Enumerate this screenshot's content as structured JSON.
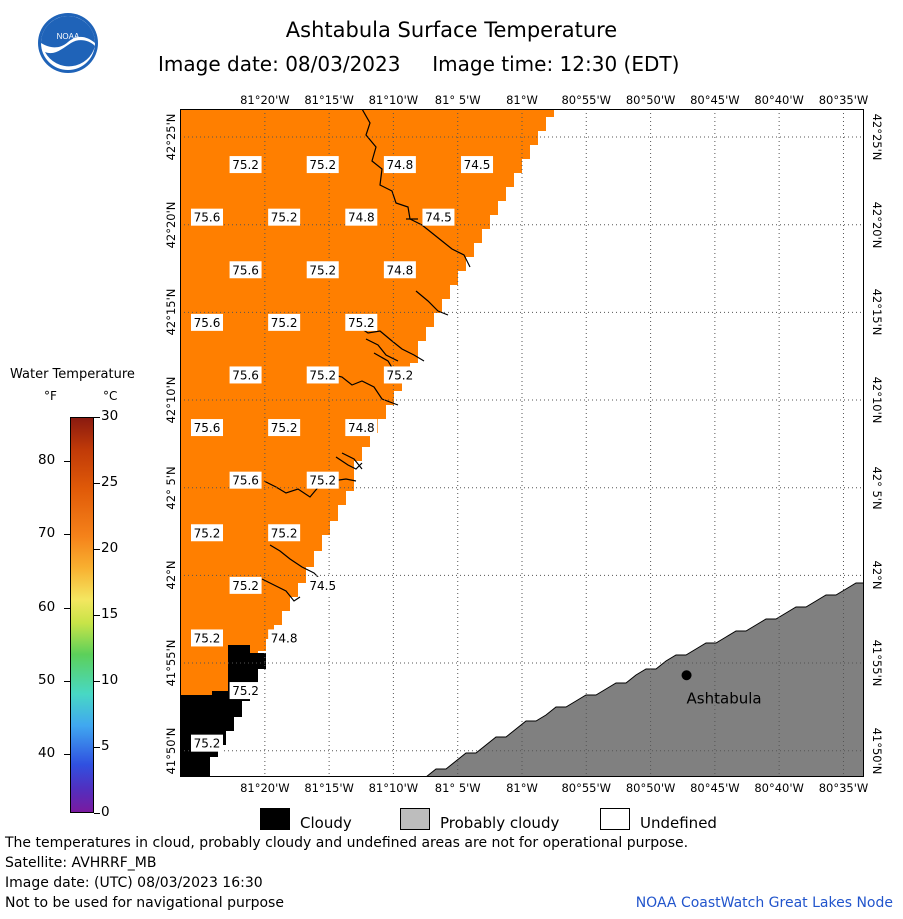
{
  "title": "Ashtabula Surface Temperature",
  "subtitle": {
    "date": "Image date: 08/03/2023",
    "time": "Image time: 12:30 (EDT)"
  },
  "logo": {
    "text": "NOAA"
  },
  "lon_labels": [
    "81°20'W",
    "81°15'W",
    "81°10'W",
    "81° 5'W",
    "81°W",
    "80°55'W",
    "80°50'W",
    "80°45'W",
    "80°40'W",
    "80°35'W"
  ],
  "lat_labels": [
    "42°25'N",
    "42°20'N",
    "42°15'N",
    "42°10'N",
    "42° 5'N",
    "42°N",
    "41°55'N",
    "41°50'N"
  ],
  "temperatures": [
    {
      "v": "75.2",
      "lon": -81.3583,
      "lat": 42.39
    },
    {
      "v": "75.2",
      "lon": -81.2583,
      "lat": 42.39
    },
    {
      "v": "74.8",
      "lon": -81.1583,
      "lat": 42.39
    },
    {
      "v": "74.5",
      "lon": -81.0583,
      "lat": 42.39
    },
    {
      "v": "75.6",
      "lon": -81.4083,
      "lat": 42.34
    },
    {
      "v": "75.2",
      "lon": -81.3083,
      "lat": 42.34
    },
    {
      "v": "74.8",
      "lon": -81.2083,
      "lat": 42.34
    },
    {
      "v": "74.5",
      "lon": -81.1083,
      "lat": 42.34
    },
    {
      "v": "75.6",
      "lon": -81.3583,
      "lat": 42.29
    },
    {
      "v": "75.2",
      "lon": -81.2583,
      "lat": 42.29
    },
    {
      "v": "74.8",
      "lon": -81.1583,
      "lat": 42.29
    },
    {
      "v": "75.6",
      "lon": -81.4083,
      "lat": 42.24
    },
    {
      "v": "75.2",
      "lon": -81.3083,
      "lat": 42.24
    },
    {
      "v": "75.2",
      "lon": -81.2083,
      "lat": 42.24
    },
    {
      "v": "75.6",
      "lon": -81.3583,
      "lat": 42.19
    },
    {
      "v": "75.2",
      "lon": -81.2583,
      "lat": 42.19
    },
    {
      "v": "75.2",
      "lon": -81.1583,
      "lat": 42.19
    },
    {
      "v": "75.6",
      "lon": -81.4083,
      "lat": 42.14
    },
    {
      "v": "75.2",
      "lon": -81.3083,
      "lat": 42.14
    },
    {
      "v": "74.8",
      "lon": -81.2083,
      "lat": 42.14
    },
    {
      "v": "75.6",
      "lon": -81.3583,
      "lat": 42.09
    },
    {
      "v": "75.2",
      "lon": -81.2583,
      "lat": 42.09
    },
    {
      "v": "75.2",
      "lon": -81.4083,
      "lat": 42.04
    },
    {
      "v": "75.2",
      "lon": -81.3083,
      "lat": 42.04
    },
    {
      "v": "75.2",
      "lon": -81.3583,
      "lat": 41.99
    },
    {
      "v": "74.5",
      "lon": -81.2583,
      "lat": 41.99
    },
    {
      "v": "75.2",
      "lon": -81.4083,
      "lat": 41.94
    },
    {
      "v": "74.8",
      "lon": -81.3083,
      "lat": 41.94
    },
    {
      "v": "75.2",
      "lon": -81.3583,
      "lat": 41.89
    },
    {
      "v": "75.2",
      "lon": -81.4083,
      "lat": 41.84
    }
  ],
  "place": {
    "name": "Ashtabula",
    "lon": -80.7867,
    "lat": 41.905
  },
  "legend": {
    "title": "Water Temperature",
    "unit_f": "°F",
    "unit_c": "°C",
    "f_ticks": [
      "40",
      "50",
      "60",
      "70",
      "80"
    ],
    "c_ticks": [
      "0",
      "5",
      "10",
      "15",
      "20",
      "25",
      "30"
    ]
  },
  "key": {
    "cloudy": "Cloudy",
    "probably_cloudy": "Probably cloudy",
    "undefined": "Undefined"
  },
  "footer": {
    "note": "The temperatures in cloud, probably cloudy and undefined areas are not for operational purpose.",
    "satellite": "Satellite: AVHRRF_MB",
    "utc_date": "Image date: (UTC) 08/03/2023  16:30",
    "warning": "Not to be used for navigational purpose",
    "credit": "NOAA CoastWatch Great Lakes Node"
  },
  "colors": {
    "water": "#ff7f00",
    "cloudy": "#000000",
    "probably_cloudy": "#808080",
    "undefined": "#ffffff",
    "credit": "#2255cc"
  }
}
